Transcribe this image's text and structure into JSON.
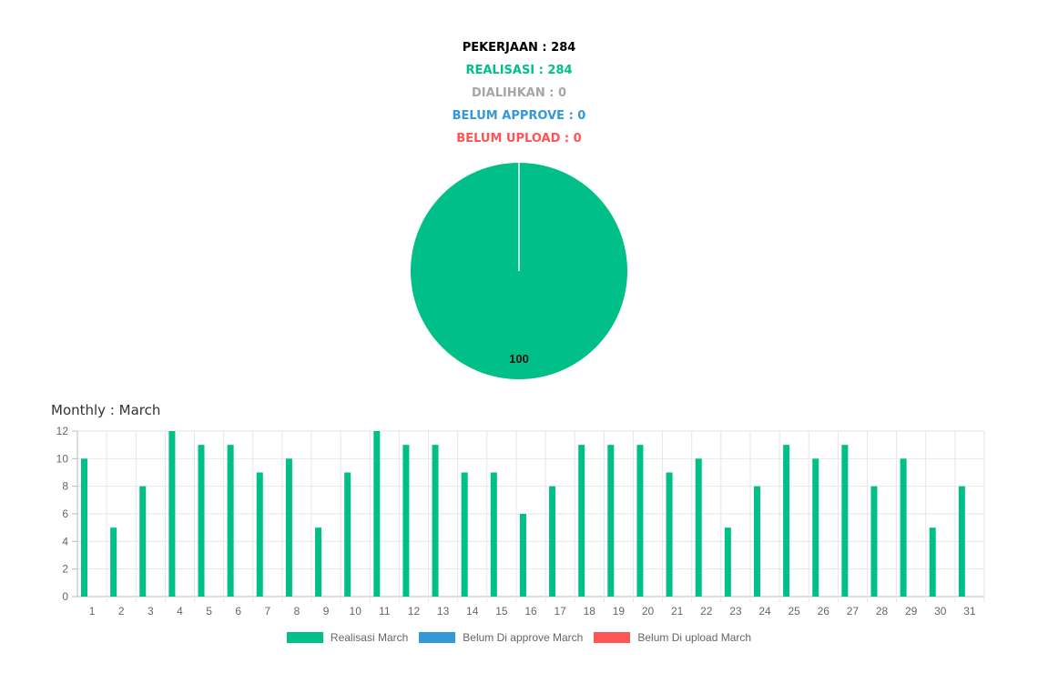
{
  "summary": {
    "pekerjaan": "PEKERJAAN : 284",
    "realisasi": "REALISASI : 284",
    "dialihkan": "DIALIHKAN : 0",
    "belum_approve": "BELUM APPROVE : 0",
    "belum_upload": "BELUM UPLOAD : 0"
  },
  "colors": {
    "pekerjaan": "#000000",
    "realisasi": "#00bf89",
    "dialihkan": "#a6a6a6",
    "belum_approve": "#3498db",
    "belum_upload": "#ff5555"
  },
  "monthly_title": "Monthly : March",
  "chart_data": [
    {
      "type": "pie",
      "slices": [
        {
          "label": "Realisasi",
          "value": 100,
          "color": "#00bf89"
        }
      ],
      "data_label": "100"
    },
    {
      "type": "bar",
      "categories": [
        "1",
        "2",
        "3",
        "4",
        "5",
        "6",
        "7",
        "8",
        "9",
        "10",
        "11",
        "12",
        "13",
        "14",
        "15",
        "16",
        "17",
        "18",
        "19",
        "20",
        "21",
        "22",
        "23",
        "24",
        "25",
        "26",
        "27",
        "28",
        "29",
        "30",
        "31"
      ],
      "series": [
        {
          "name": "Realisasi March",
          "color": "#00bf89",
          "values": [
            10,
            5,
            8,
            12,
            11,
            11,
            9,
            10,
            5,
            9,
            12,
            11,
            11,
            9,
            9,
            6,
            8,
            11,
            11,
            11,
            9,
            10,
            5,
            8,
            11,
            10,
            11,
            8,
            10,
            5,
            8
          ]
        },
        {
          "name": "Belum Di approve March",
          "color": "#3498db",
          "values": [
            0,
            0,
            0,
            0,
            0,
            0,
            0,
            0,
            0,
            0,
            0,
            0,
            0,
            0,
            0,
            0,
            0,
            0,
            0,
            0,
            0,
            0,
            0,
            0,
            0,
            0,
            0,
            0,
            0,
            0,
            0
          ]
        },
        {
          "name": "Belum Di upload March",
          "color": "#ff5555",
          "values": [
            0,
            0,
            0,
            0,
            0,
            0,
            0,
            0,
            0,
            0,
            0,
            0,
            0,
            0,
            0,
            0,
            0,
            0,
            0,
            0,
            0,
            0,
            0,
            0,
            0,
            0,
            0,
            0,
            0,
            0,
            0
          ]
        }
      ],
      "ylim": [
        0,
        12
      ],
      "yticks": [
        "0",
        "2",
        "4",
        "6",
        "8",
        "10",
        "12"
      ],
      "grid": true,
      "legend_position": "bottom"
    }
  ]
}
